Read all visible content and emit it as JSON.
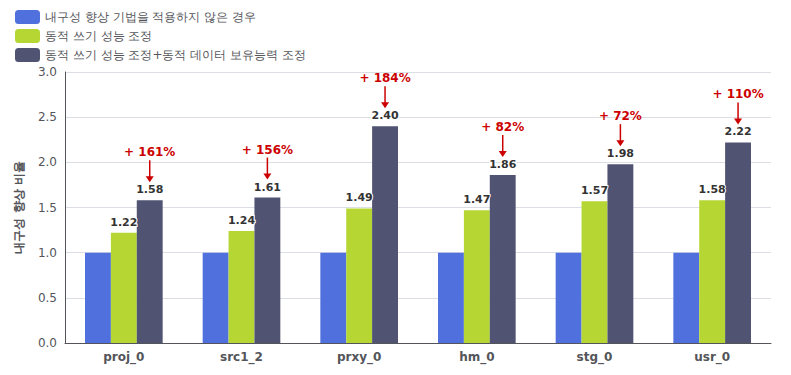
{
  "chart_data": {
    "type": "bar",
    "categories": [
      "proj_0",
      "src1_2",
      "prxy_0",
      "hm_0",
      "stg_0",
      "usr_0"
    ],
    "series": [
      {
        "name": "내구성 향상 기법을 적용하지 않은 경우",
        "values": [
          1.0,
          1.0,
          1.0,
          1.0,
          1.0,
          1.0
        ]
      },
      {
        "name": "동적 쓰기 성능 조정",
        "values": [
          1.22,
          1.24,
          1.49,
          1.47,
          1.57,
          1.58
        ],
        "data_labels": true
      },
      {
        "name": "동적 쓰기 성능 조정+동적 데이터 보유능력 조정",
        "values": [
          1.58,
          1.61,
          2.4,
          1.86,
          1.98,
          2.22
        ],
        "value_labels": [
          "1.58",
          "1.61",
          "2.40",
          "1.86",
          "1.98",
          "2.22"
        ],
        "data_labels": true
      }
    ],
    "ylabel": "내구성 향상 비율",
    "ylim": [
      0.0,
      3.0
    ],
    "yticks": [
      {
        "value": 0.0,
        "label": "0.0"
      },
      {
        "value": 0.5,
        "label": "0.5"
      },
      {
        "value": 1.0,
        "label": "1.0"
      },
      {
        "value": 1.5,
        "label": "1.5"
      },
      {
        "value": 2.0,
        "label": "2.0"
      },
      {
        "value": 2.5,
        "label": "2.5"
      },
      {
        "value": 3.0,
        "label": "3.0"
      }
    ],
    "grid": true,
    "legend": "upper left",
    "annotations": [
      {
        "category": "proj_0",
        "text": "+ 161%",
        "color": "#cc0000"
      },
      {
        "category": "src1_2",
        "text": "+ 156%",
        "color": "#cc0000"
      },
      {
        "category": "prxy_0",
        "text": "+ 184%",
        "color": "#cc0000"
      },
      {
        "category": "hm_0",
        "text": "+ 82%",
        "color": "#cc0000"
      },
      {
        "category": "stg_0",
        "text": "+ 72%",
        "color": "#cc0000"
      },
      {
        "category": "usr_0",
        "text": "+ 110%",
        "color": "#cc0000"
      }
    ]
  }
}
